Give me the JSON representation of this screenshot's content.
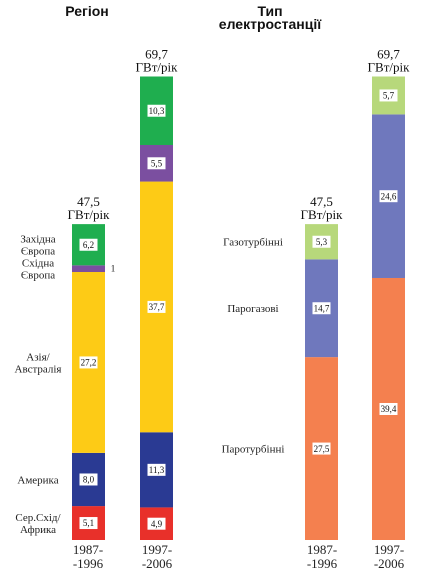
{
  "chart_data": [
    {
      "type": "bar",
      "stacked": true,
      "title": "Регіон",
      "unit": "ГВт/рік",
      "categories": [
        "1987-\n-1996",
        "1997-\n-2006"
      ],
      "totals": [
        "47,5",
        "69,7"
      ],
      "segment_labels": [
        "Сер.Схід/\nАфрика",
        "Америка",
        "Азія/\nАвстралія",
        "Східна\nЄвропа",
        "Західна\nЄвропа"
      ],
      "series": [
        {
          "name": "Сер.Схід/ Африка",
          "color": "#e8302a",
          "values": [
            5.1,
            4.9
          ],
          "value_labels": [
            "5,1",
            "4,9"
          ]
        },
        {
          "name": "Америка",
          "color": "#2a3a93",
          "values": [
            8.0,
            11.3
          ],
          "value_labels": [
            "8,0",
            "11,3"
          ]
        },
        {
          "name": "Азія/ Австралія",
          "color": "#fdcb16",
          "values": [
            27.2,
            37.7
          ],
          "value_labels": [
            "27,2",
            "37,7"
          ]
        },
        {
          "name": "Східна Європа",
          "color": "#7b4fa0",
          "values": [
            1.0,
            5.5
          ],
          "value_labels": [
            "1",
            "5,5"
          ]
        },
        {
          "name": "Західна Європа",
          "color": "#1fae4f",
          "values": [
            6.2,
            10.3
          ],
          "value_labels": [
            "6,2",
            "10,3"
          ]
        }
      ]
    },
    {
      "type": "bar",
      "stacked": true,
      "title": "Тип\nелектростанції",
      "unit": "ГВт/рік",
      "categories": [
        "1987-\n-1996",
        "1997-\n-2006"
      ],
      "totals": [
        "47,5",
        "69,7"
      ],
      "segment_labels": [
        "Паротурбінні",
        "Парогазові",
        "Газотурбінні"
      ],
      "series": [
        {
          "name": "Паротурбінні",
          "color": "#f4804f",
          "values": [
            27.5,
            39.4
          ],
          "value_labels": [
            "27,5",
            "39,4"
          ]
        },
        {
          "name": "Парогазові",
          "color": "#6f78bd",
          "values": [
            14.7,
            24.6
          ],
          "value_labels": [
            "14,7",
            "24,6"
          ]
        },
        {
          "name": "Газотурбінні",
          "color": "#b7d87b",
          "values": [
            5.3,
            5.7
          ],
          "value_labels": [
            "5,3",
            "5,7"
          ]
        }
      ]
    }
  ]
}
